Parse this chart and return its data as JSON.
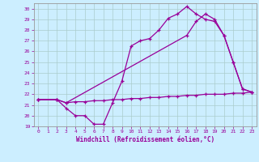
{
  "bg_color": "#cceeff",
  "line_color": "#990099",
  "grid_color": "#aacccc",
  "xlim": [
    -0.5,
    23.5
  ],
  "ylim": [
    19,
    30.5
  ],
  "xticks": [
    0,
    1,
    2,
    3,
    4,
    5,
    6,
    7,
    8,
    9,
    10,
    11,
    12,
    13,
    14,
    15,
    16,
    17,
    18,
    19,
    20,
    21,
    22,
    23
  ],
  "yticks": [
    19,
    20,
    21,
    22,
    23,
    24,
    25,
    26,
    27,
    28,
    29,
    30
  ],
  "xlabel": "Windchill (Refroidissement éolien,°C)",
  "line1_x": [
    0,
    2,
    3,
    4,
    5,
    6,
    7,
    8,
    9,
    10,
    11,
    12,
    13,
    14,
    15,
    16,
    17,
    18,
    19,
    20,
    21,
    22,
    23
  ],
  "line1_y": [
    21.5,
    21.5,
    20.7,
    20.0,
    20.0,
    19.2,
    19.2,
    21.2,
    23.2,
    26.5,
    27.0,
    27.2,
    28.0,
    29.1,
    29.5,
    30.2,
    29.5,
    29.0,
    28.8,
    27.5,
    25.0,
    22.5,
    22.2
  ],
  "line2_x": [
    0,
    2,
    3,
    4,
    5,
    6,
    7,
    8,
    9,
    10,
    11,
    12,
    13,
    14,
    15,
    16,
    17,
    18,
    19,
    20,
    21,
    22,
    23
  ],
  "line2_y": [
    21.5,
    21.5,
    21.2,
    21.3,
    21.3,
    21.4,
    21.4,
    21.5,
    21.5,
    21.6,
    21.6,
    21.7,
    21.7,
    21.8,
    21.8,
    21.9,
    21.9,
    22.0,
    22.0,
    22.0,
    22.1,
    22.1,
    22.2
  ],
  "line3_x": [
    0,
    2,
    3,
    16,
    17,
    18,
    19,
    20,
    21,
    22,
    23
  ],
  "line3_y": [
    21.5,
    21.5,
    21.2,
    27.5,
    28.8,
    29.5,
    29.0,
    27.5,
    25.0,
    22.5,
    22.2
  ]
}
